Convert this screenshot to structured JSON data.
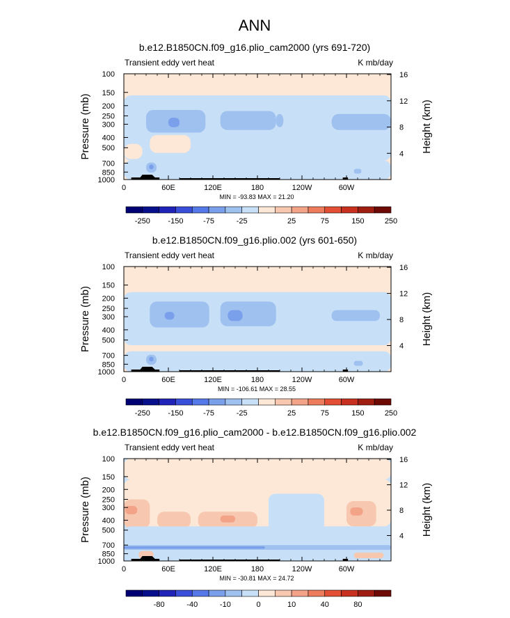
{
  "figure_title": "ANN",
  "chart_data": [
    {
      "type": "heatmap",
      "title": "b.e12.B1850CN.f09_g16.plio_cam2000 (yrs 691-720)",
      "left_label": "Transient eddy vert heat",
      "right_label": "K mb/day",
      "ylabel": "Pressure (mb)",
      "ylabel_right": "Height (km)",
      "x_ticks": [
        "0",
        "60E",
        "120E",
        "180",
        "120W",
        "60W"
      ],
      "x_tick_lon": [
        0,
        60,
        120,
        180,
        240,
        300
      ],
      "xlim": [
        0,
        360
      ],
      "y_ticks": [
        "100",
        "150",
        "200",
        "250",
        "300",
        "400",
        "500",
        "700",
        "850",
        "1000"
      ],
      "y_tick_p": [
        100,
        150,
        200,
        250,
        300,
        400,
        500,
        700,
        850,
        1000
      ],
      "ylim": [
        1000,
        100
      ],
      "height_ticks": [
        "4",
        "8",
        "12",
        "16"
      ],
      "height_tick_km": [
        4,
        8,
        12,
        16
      ],
      "stats": "MIN = -93.83   MAX =  21.20",
      "min": -93.83,
      "max": 21.2,
      "colorbar_labels": [
        "-250",
        "-150",
        "-75",
        "-25",
        "25",
        "75",
        "150",
        "250"
      ],
      "background_level": 1,
      "regions": [
        {
          "lon": [
            0,
            360
          ],
          "p": [
            100,
            160
          ],
          "level": 1
        },
        {
          "lon": [
            0,
            360
          ],
          "p": [
            160,
            660
          ],
          "level": -1
        },
        {
          "lon": [
            30,
            110
          ],
          "p": [
            220,
            360
          ],
          "level": -2
        },
        {
          "lon": [
            130,
            205
          ],
          "p": [
            225,
            340
          ],
          "level": -2
        },
        {
          "lon": [
            60,
            75
          ],
          "p": [
            260,
            320
          ],
          "level": -3
        },
        {
          "lon": [
            205,
            215
          ],
          "p": [
            240,
            320
          ],
          "level": -2
        },
        {
          "lon": [
            0,
            25
          ],
          "p": [
            460,
            640
          ],
          "level": 1
        },
        {
          "lon": [
            35,
            90
          ],
          "p": [
            380,
            560
          ],
          "level": 1
        },
        {
          "lon": [
            280,
            360
          ],
          "p": [
            240,
            340
          ],
          "level": -2
        },
        {
          "lon": [
            0,
            360
          ],
          "p": [
            660,
            1000
          ],
          "level": -1
        },
        {
          "lon": [
            30,
            44
          ],
          "p": [
            690,
            860
          ],
          "level": -2
        },
        {
          "lon": [
            34,
            40
          ],
          "p": [
            720,
            800
          ],
          "level": -3
        },
        {
          "lon": [
            310,
            320
          ],
          "p": [
            790,
            880
          ],
          "level": -2
        }
      ]
    },
    {
      "type": "heatmap",
      "title": "b.e12.B1850CN.f09_g16.plio.002 (yrs 601-650)",
      "left_label": "Transient eddy vert heat",
      "right_label": "K mb/day",
      "ylabel": "Pressure (mb)",
      "ylabel_right": "Height (km)",
      "x_ticks": [
        "0",
        "60E",
        "120E",
        "180",
        "120W",
        "60W"
      ],
      "x_tick_lon": [
        0,
        60,
        120,
        180,
        240,
        300
      ],
      "xlim": [
        0,
        360
      ],
      "y_ticks": [
        "100",
        "150",
        "200",
        "250",
        "300",
        "400",
        "500",
        "700",
        "850",
        "1000"
      ],
      "y_tick_p": [
        100,
        150,
        200,
        250,
        300,
        400,
        500,
        700,
        850,
        1000
      ],
      "ylim": [
        1000,
        100
      ],
      "height_ticks": [
        "4",
        "8",
        "12",
        "16"
      ],
      "height_tick_km": [
        4,
        8,
        12,
        16
      ],
      "stats": "MIN = -106.61   MAX =  28.55",
      "min": -106.61,
      "max": 28.55,
      "colorbar_labels": [
        "-250",
        "-150",
        "-75",
        "-25",
        "25",
        "75",
        "150",
        "250"
      ],
      "background_level": 1,
      "regions": [
        {
          "lon": [
            0,
            360
          ],
          "p": [
            100,
            175
          ],
          "level": 1
        },
        {
          "lon": [
            0,
            360
          ],
          "p": [
            175,
            560
          ],
          "level": -1
        },
        {
          "lon": [
            35,
            115
          ],
          "p": [
            215,
            380
          ],
          "level": -2
        },
        {
          "lon": [
            130,
            205
          ],
          "p": [
            215,
            370
          ],
          "level": -2
        },
        {
          "lon": [
            140,
            160
          ],
          "p": [
            260,
            330
          ],
          "level": -3
        },
        {
          "lon": [
            55,
            68
          ],
          "p": [
            270,
            320
          ],
          "level": -3
        },
        {
          "lon": [
            280,
            345
          ],
          "p": [
            260,
            330
          ],
          "level": -2
        },
        {
          "lon": [
            0,
            360
          ],
          "p": [
            560,
            640
          ],
          "level": 1
        },
        {
          "lon": [
            0,
            360
          ],
          "p": [
            640,
            1000
          ],
          "level": -1
        },
        {
          "lon": [
            30,
            44
          ],
          "p": [
            690,
            860
          ],
          "level": -2
        },
        {
          "lon": [
            34,
            40
          ],
          "p": [
            720,
            800
          ],
          "level": -3
        },
        {
          "lon": [
            310,
            322
          ],
          "p": [
            790,
            880
          ],
          "level": -2
        }
      ]
    },
    {
      "type": "heatmap",
      "title": "b.e12.B1850CN.f09_g16.plio_cam2000 - b.e12.B1850CN.f09_g16.plio.002",
      "left_label": "Transient eddy vert heat",
      "right_label": "K mb/day",
      "ylabel": "Pressure (mb)",
      "ylabel_right": "Height (km)",
      "x_ticks": [
        "0",
        "60E",
        "120E",
        "180",
        "120W",
        "60W"
      ],
      "x_tick_lon": [
        0,
        60,
        120,
        180,
        240,
        300
      ],
      "xlim": [
        0,
        360
      ],
      "y_ticks": [
        "100",
        "150",
        "200",
        "250",
        "300",
        "400",
        "500",
        "700",
        "850",
        "1000"
      ],
      "y_tick_p": [
        100,
        150,
        200,
        250,
        300,
        400,
        500,
        700,
        850,
        1000
      ],
      "ylim": [
        1000,
        100
      ],
      "height_ticks": [
        "4",
        "8",
        "12",
        "16"
      ],
      "height_tick_km": [
        4,
        8,
        12,
        16
      ],
      "stats": "MIN = -30.81   MAX =  24.72",
      "min": -30.81,
      "max": 24.72,
      "colorbar_labels": [
        "-80",
        "-40",
        "-10",
        "0",
        "10",
        "40",
        "80"
      ],
      "background_level": -1,
      "regions": [
        {
          "lon": [
            0,
            360
          ],
          "p": [
            100,
            160
          ],
          "level": 1
        },
        {
          "lon": [
            0,
            360
          ],
          "p": [
            160,
            460
          ],
          "level": 1
        },
        {
          "lon": [
            195,
            270
          ],
          "p": [
            220,
            520
          ],
          "level": -1
        },
        {
          "lon": [
            0,
            35
          ],
          "p": [
            250,
            480
          ],
          "level": 2
        },
        {
          "lon": [
            2,
            18
          ],
          "p": [
            290,
            350
          ],
          "level": 3
        },
        {
          "lon": [
            45,
            90
          ],
          "p": [
            330,
            480
          ],
          "level": 2
        },
        {
          "lon": [
            100,
            180
          ],
          "p": [
            330,
            480
          ],
          "level": 2
        },
        {
          "lon": [
            130,
            150
          ],
          "p": [
            360,
            420
          ],
          "level": 3
        },
        {
          "lon": [
            300,
            340
          ],
          "p": [
            260,
            460
          ],
          "level": 2
        },
        {
          "lon": [
            305,
            322
          ],
          "p": [
            300,
            360
          ],
          "level": 3
        },
        {
          "lon": [
            0,
            360
          ],
          "p": [
            460,
            700
          ],
          "level": -1
        },
        {
          "lon": [
            0,
            360
          ],
          "p": [
            700,
            780
          ],
          "level": -2
        },
        {
          "lon": [
            0,
            190
          ],
          "p": [
            720,
            760
          ],
          "level": -3
        },
        {
          "lon": [
            0,
            360
          ],
          "p": [
            780,
            1000
          ],
          "level": -1
        },
        {
          "lon": [
            20,
            40
          ],
          "p": [
            800,
            950
          ],
          "level": 2
        },
        {
          "lon": [
            310,
            350
          ],
          "p": [
            830,
            940
          ],
          "level": 2
        }
      ]
    }
  ]
}
